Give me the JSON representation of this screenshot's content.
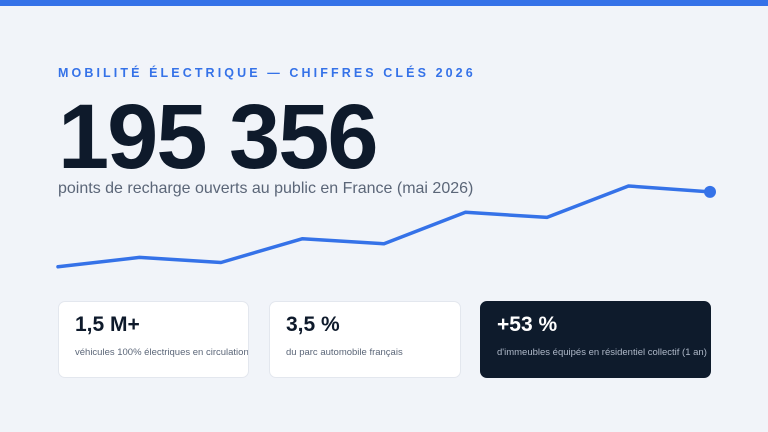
{
  "eyebrow": "MOBILITÉ ÉLECTRIQUE — CHIFFRES CLÉS 2026",
  "hero": {
    "value": "195 356",
    "caption": "points de recharge ouverts au public en France (mai 2026)"
  },
  "colors": {
    "accent": "#3572e8",
    "text_dark": "#0e1a2b",
    "card_dark_bg": "#0e1b2c"
  },
  "stats": [
    {
      "value": "1,5 M+",
      "label": "véhicules 100% électriques en circulation"
    },
    {
      "value": "3,5 %",
      "label": "du parc automobile français"
    },
    {
      "value": "+53 %",
      "label": "d'immeubles équipés en résidentiel collectif (1 an)"
    }
  ],
  "chart_data": {
    "type": "line",
    "x": [
      1,
      2,
      3,
      4,
      5,
      6,
      7,
      8,
      9
    ],
    "series": [
      {
        "values": [
          0.05,
          0.16,
          0.1,
          0.38,
          0.32,
          0.69,
          0.63,
          1.0,
          0.93
        ]
      }
    ],
    "ylim": [
      0,
      1
    ],
    "grid": false,
    "highlight_last_point": true
  }
}
